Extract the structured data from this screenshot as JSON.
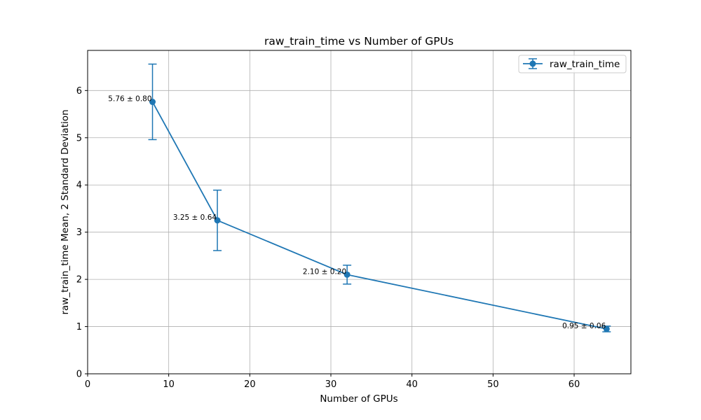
{
  "chart_data": {
    "type": "line",
    "title": "raw_train_time vs Number of GPUs",
    "xlabel": "Number of GPUs",
    "ylabel": "raw_train_time Mean, 2 Standard Deviation",
    "xlim": [
      0,
      67
    ],
    "ylim": [
      0,
      6.85
    ],
    "xticks": [
      0,
      10,
      20,
      30,
      40,
      50,
      60
    ],
    "yticks": [
      0,
      1,
      2,
      3,
      4,
      5,
      6
    ],
    "grid": true,
    "legend_position": "top-right",
    "series": [
      {
        "name": "raw_train_time",
        "color": "#1f77b4",
        "x": [
          8,
          16,
          32,
          64
        ],
        "y": [
          5.76,
          3.25,
          2.1,
          0.95
        ],
        "error": [
          0.8,
          0.64,
          0.2,
          0.06
        ],
        "labels": [
          "5.76 ± 0.80",
          "3.25 ± 0.64",
          "2.10 ± 0.20",
          "0.95 ± 0.06"
        ]
      }
    ]
  }
}
